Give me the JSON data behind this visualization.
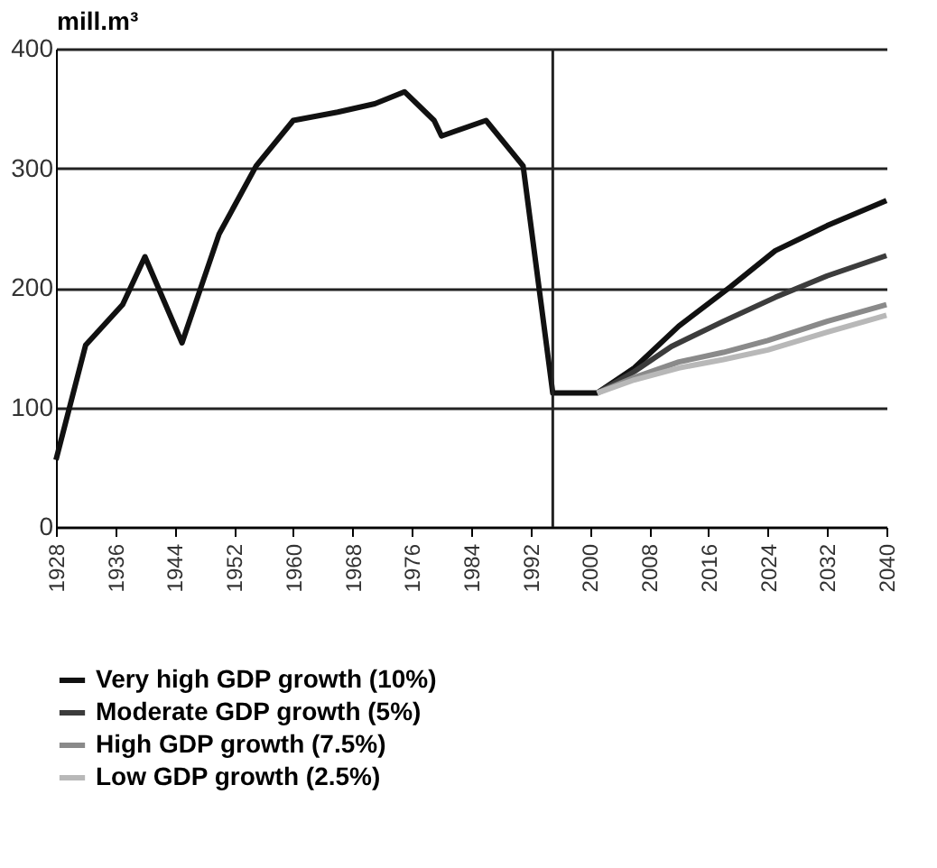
{
  "chart_data": {
    "type": "line",
    "ylabel": "mill.m³",
    "xlim": [
      1928,
      2040
    ],
    "xticks": [
      1928,
      1936,
      1944,
      1952,
      1960,
      1968,
      1976,
      1984,
      1992,
      2000,
      2008,
      2016,
      2024,
      2032,
      2040
    ],
    "ylim": [
      0,
      400
    ],
    "yticks": [
      0,
      100,
      200,
      300,
      400
    ],
    "grid": "y",
    "legend": "bottom",
    "line_style": "solid",
    "marker": "none",
    "series": [
      {
        "name": "Very high GDP growth (10%)",
        "color": "#111111",
        "x": [
          1928,
          1932,
          1937,
          1940,
          1945,
          1950,
          1955,
          1960,
          1966,
          1971,
          1975,
          1979,
          1980,
          1986,
          1991,
          1995,
          2001,
          2006,
          2012,
          2019,
          2025,
          2032,
          2040
        ],
        "values": [
          56,
          152,
          186,
          226,
          154,
          245,
          302,
          340,
          347,
          354,
          364,
          340,
          327,
          340,
          302,
          112,
          112,
          133,
          168,
          201,
          231,
          252,
          273
        ]
      },
      {
        "name": "Moderate GDP growth (5%)",
        "color": "#3c3c3c",
        "x": [
          2001,
          2006,
          2011,
          2018,
          2025,
          2032,
          2040
        ],
        "values": [
          112,
          130,
          151,
          172,
          192,
          210,
          227
        ]
      },
      {
        "name": "High GDP growth (7.5%)",
        "color": "#8a8a8a",
        "x": [
          2001,
          2006,
          2012,
          2018,
          2024,
          2032,
          2040
        ],
        "values": [
          112,
          125,
          138,
          146,
          156,
          172,
          186
        ]
      },
      {
        "name": "Low GDP growth (2.5%)",
        "color": "#b8b8b8",
        "x": [
          2001,
          2006,
          2012,
          2018,
          2024,
          2032,
          2040
        ],
        "values": [
          112,
          123,
          133,
          140,
          148,
          163,
          177
        ]
      }
    ],
    "ref_lines": [
      {
        "axis": "x",
        "value": 1995,
        "color": "#222222"
      }
    ]
  }
}
